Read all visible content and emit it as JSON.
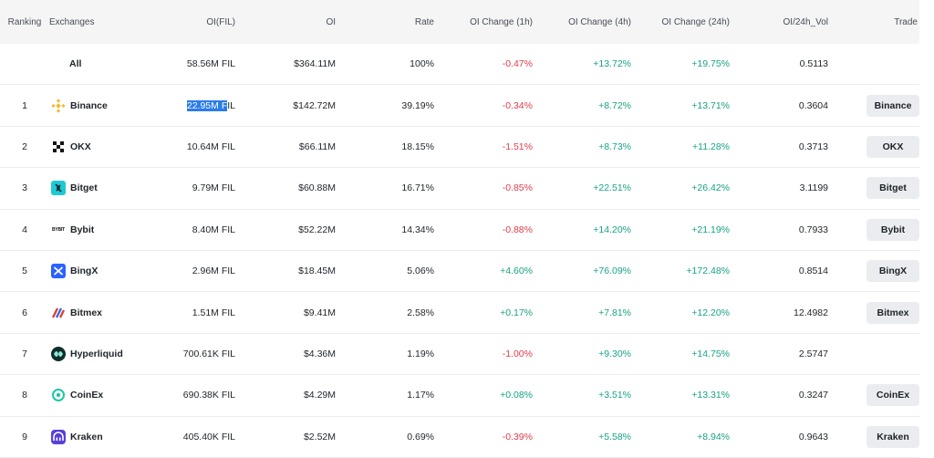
{
  "headers": {
    "ranking": "Ranking",
    "exchanges": "Exchanges",
    "oi_fil": "OI(FIL)",
    "oi": "OI",
    "rate": "Rate",
    "change_1h": "OI Change (1h)",
    "change_4h": "OI Change (4h)",
    "change_24h": "OI Change (24h)",
    "oi_vol": "OI/24h_Vol",
    "trade": "Trade"
  },
  "all_row": {
    "label": "All",
    "oi_fil": "58.56M FIL",
    "oi": "$364.11M",
    "rate": "100%",
    "change_1h": "-0.47%",
    "change_4h": "+13.72%",
    "change_24h": "+19.75%",
    "oi_vol": "0.5113"
  },
  "rows": [
    {
      "rank": "1",
      "name": "Binance",
      "oi_fil_selected": "22.95M F",
      "oi_fil_rest": "IL",
      "oi": "$142.72M",
      "rate": "39.19%",
      "change_1h": "-0.34%",
      "change_4h": "+8.72%",
      "change_24h": "+13.71%",
      "oi_vol": "0.3604",
      "trade": "Binance",
      "icon": "binance-icon"
    },
    {
      "rank": "2",
      "name": "OKX",
      "oi_fil": "10.64M FIL",
      "oi": "$66.11M",
      "rate": "18.15%",
      "change_1h": "-1.51%",
      "change_4h": "+8.73%",
      "change_24h": "+11.28%",
      "oi_vol": "0.3713",
      "trade": "OKX",
      "icon": "okx-icon"
    },
    {
      "rank": "3",
      "name": "Bitget",
      "oi_fil": "9.79M FIL",
      "oi": "$60.88M",
      "rate": "16.71%",
      "change_1h": "-0.85%",
      "change_4h": "+22.51%",
      "change_24h": "+26.42%",
      "oi_vol": "3.1199",
      "trade": "Bitget",
      "icon": "bitget-icon"
    },
    {
      "rank": "4",
      "name": "Bybit",
      "oi_fil": "8.40M FIL",
      "oi": "$52.22M",
      "rate": "14.34%",
      "change_1h": "-0.88%",
      "change_4h": "+14.20%",
      "change_24h": "+21.19%",
      "oi_vol": "0.7933",
      "trade": "Bybit",
      "icon": "bybit-icon",
      "logo_text": "BYBIT"
    },
    {
      "rank": "5",
      "name": "BingX",
      "oi_fil": "2.96M FIL",
      "oi": "$18.45M",
      "rate": "5.06%",
      "change_1h": "+4.60%",
      "change_4h": "+76.09%",
      "change_24h": "+172.48%",
      "oi_vol": "0.8514",
      "trade": "BingX",
      "icon": "bingx-icon"
    },
    {
      "rank": "6",
      "name": "Bitmex",
      "oi_fil": "1.51M FIL",
      "oi": "$9.41M",
      "rate": "2.58%",
      "change_1h": "+0.17%",
      "change_4h": "+7.81%",
      "change_24h": "+12.20%",
      "oi_vol": "12.4982",
      "trade": "Bitmex",
      "icon": "bitmex-icon"
    },
    {
      "rank": "7",
      "name": "Hyperliquid",
      "oi_fil": "700.61K FIL",
      "oi": "$4.36M",
      "rate": "1.19%",
      "change_1h": "-1.00%",
      "change_4h": "+9.30%",
      "change_24h": "+14.75%",
      "oi_vol": "2.5747",
      "trade": "",
      "icon": "hyperliquid-icon"
    },
    {
      "rank": "8",
      "name": "CoinEx",
      "oi_fil": "690.38K FIL",
      "oi": "$4.29M",
      "rate": "1.17%",
      "change_1h": "+0.08%",
      "change_4h": "+3.51%",
      "change_24h": "+13.31%",
      "oi_vol": "0.3247",
      "trade": "CoinEx",
      "icon": "coinex-icon"
    },
    {
      "rank": "9",
      "name": "Kraken",
      "oi_fil": "405.40K FIL",
      "oi": "$2.52M",
      "rate": "0.69%",
      "change_1h": "-0.39%",
      "change_4h": "+5.58%",
      "change_24h": "+8.94%",
      "oi_vol": "0.9643",
      "trade": "Kraken",
      "icon": "kraken-icon"
    }
  ],
  "colors": {
    "negative": "#e03c4b",
    "positive": "#16a383",
    "selection": "#2b7de9",
    "header_bg": "#f5f5f5"
  }
}
